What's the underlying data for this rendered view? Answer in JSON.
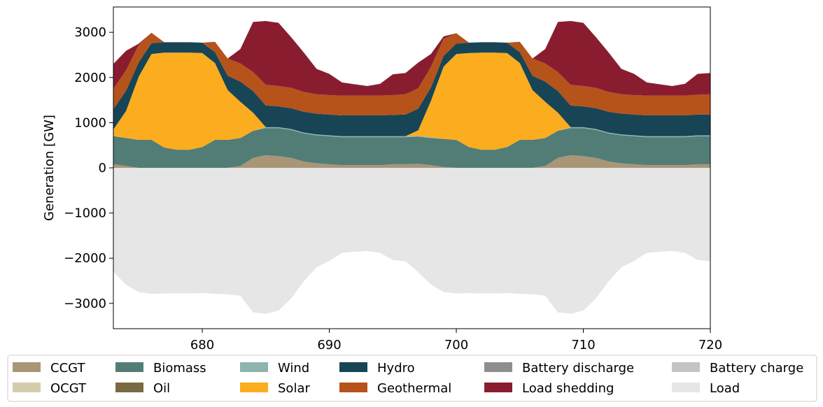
{
  "chart_data": {
    "type": "area",
    "stacked": true,
    "title": "",
    "xlabel": "",
    "ylabel": "Generation [GW]",
    "xlim": [
      673,
      720
    ],
    "ylim": [
      -3560,
      3560
    ],
    "xticks": [
      680,
      690,
      700,
      710,
      720
    ],
    "yticks": [
      -3000,
      -2000,
      -1000,
      0,
      1000,
      2000,
      3000
    ],
    "tick_labels": {
      "x": [
        "680",
        "690",
        "700",
        "710",
        "720"
      ],
      "y": [
        "−3000",
        "−2000",
        "−1000",
        "0",
        "1000",
        "2000",
        "3000"
      ]
    },
    "grid": false,
    "legend_position": "bottom",
    "x": [
      673,
      674,
      675,
      676,
      677,
      678,
      679,
      680,
      681,
      682,
      683,
      684,
      685,
      686,
      687,
      688,
      689,
      690,
      691,
      692,
      693,
      694,
      695,
      696,
      697,
      698,
      699,
      700,
      701,
      702,
      703,
      704,
      705,
      706,
      707,
      708,
      709,
      710,
      711,
      712,
      713,
      714,
      715,
      716,
      717,
      718,
      719,
      720
    ],
    "series": [
      {
        "name": "CCGT",
        "color": "#a89677",
        "values": [
          80,
          40,
          0,
          0,
          0,
          0,
          0,
          0,
          0,
          0,
          40,
          220,
          280,
          260,
          220,
          140,
          100,
          80,
          60,
          60,
          60,
          60,
          80,
          80,
          90,
          60,
          20,
          0,
          0,
          0,
          0,
          0,
          0,
          0,
          40,
          220,
          280,
          260,
          220,
          140,
          100,
          80,
          60,
          60,
          60,
          60,
          80,
          80
        ]
      },
      {
        "name": "OCGT",
        "color": "#d4cdac",
        "values": [
          0,
          0,
          0,
          0,
          0,
          0,
          0,
          0,
          0,
          0,
          0,
          0,
          0,
          0,
          0,
          0,
          0,
          0,
          0,
          0,
          0,
          0,
          0,
          0,
          0,
          0,
          0,
          0,
          0,
          0,
          0,
          0,
          0,
          0,
          0,
          0,
          0,
          0,
          0,
          0,
          0,
          0,
          0,
          0,
          0,
          0,
          0,
          0
        ]
      },
      {
        "name": "Biomass",
        "color": "#527d76",
        "values": [
          620,
          620,
          620,
          620,
          450,
          400,
          400,
          460,
          620,
          620,
          620,
          600,
          600,
          620,
          620,
          620,
          620,
          620,
          620,
          620,
          620,
          620,
          600,
          600,
          600,
          600,
          620,
          620,
          460,
          400,
          400,
          460,
          620,
          620,
          620,
          600,
          600,
          620,
          620,
          620,
          620,
          620,
          620,
          620,
          620,
          620,
          620,
          620
        ]
      },
      {
        "name": "Wind",
        "color": "#8eb4ae",
        "values": [
          0,
          0,
          0,
          0,
          0,
          0,
          0,
          0,
          0,
          0,
          0,
          0,
          20,
          20,
          20,
          20,
          20,
          20,
          20,
          20,
          20,
          20,
          20,
          20,
          20,
          20,
          0,
          0,
          0,
          0,
          0,
          0,
          0,
          0,
          0,
          0,
          20,
          20,
          20,
          20,
          20,
          20,
          20,
          20,
          20,
          20,
          20,
          20
        ]
      },
      {
        "name": "Oil",
        "color": "#7a6a43",
        "values": [
          0,
          0,
          0,
          0,
          0,
          0,
          0,
          0,
          0,
          0,
          0,
          0,
          0,
          0,
          0,
          0,
          0,
          0,
          0,
          0,
          0,
          0,
          0,
          0,
          0,
          0,
          0,
          0,
          0,
          0,
          0,
          0,
          0,
          0,
          0,
          0,
          0,
          0,
          0,
          0,
          0,
          0,
          0,
          0,
          0,
          0,
          0,
          0
        ]
      },
      {
        "name": "Solar",
        "color": "#fbad1f",
        "values": [
          150,
          600,
          1400,
          1900,
          2100,
          2150,
          2150,
          2080,
          1700,
          1100,
          800,
          400,
          0,
          0,
          0,
          0,
          0,
          0,
          0,
          0,
          0,
          0,
          0,
          0,
          120,
          800,
          1600,
          1900,
          2080,
          2150,
          2150,
          2080,
          1700,
          1100,
          800,
          400,
          0,
          0,
          0,
          0,
          0,
          0,
          0,
          0,
          0,
          0,
          0,
          0
        ]
      },
      {
        "name": "Hydro",
        "color": "#184555",
        "values": [
          450,
          450,
          320,
          240,
          230,
          230,
          230,
          230,
          240,
          320,
          450,
          480,
          480,
          460,
          460,
          460,
          460,
          460,
          460,
          460,
          460,
          460,
          470,
          480,
          480,
          300,
          240,
          230,
          230,
          230,
          230,
          230,
          240,
          320,
          450,
          480,
          480,
          460,
          460,
          460,
          460,
          460,
          460,
          460,
          460,
          460,
          460,
          460
        ]
      },
      {
        "name": "Geothermal",
        "color": "#b5531b",
        "values": [
          450,
          450,
          380,
          230,
          0,
          0,
          0,
          0,
          230,
          380,
          400,
          420,
          460,
          450,
          450,
          440,
          430,
          430,
          440,
          440,
          440,
          440,
          440,
          450,
          450,
          450,
          380,
          230,
          0,
          0,
          0,
          0,
          230,
          380,
          400,
          420,
          460,
          450,
          450,
          440,
          430,
          430,
          440,
          440,
          440,
          440,
          440,
          450
        ]
      },
      {
        "name": "Battery discharge",
        "color": "#8e8e8e",
        "values": [
          0,
          0,
          0,
          0,
          0,
          0,
          0,
          0,
          0,
          0,
          0,
          0,
          0,
          0,
          0,
          0,
          0,
          0,
          0,
          0,
          0,
          0,
          0,
          0,
          0,
          0,
          0,
          0,
          0,
          0,
          0,
          0,
          0,
          0,
          0,
          0,
          0,
          0,
          0,
          0,
          0,
          0,
          0,
          0,
          0,
          0,
          0,
          0
        ]
      },
      {
        "name": "Load shedding",
        "color": "#891d2f",
        "values": [
          550,
          430,
          30,
          0,
          0,
          0,
          0,
          0,
          0,
          0,
          320,
          1110,
          1410,
          1400,
          1120,
          870,
          560,
          470,
          290,
          250,
          210,
          260,
          460,
          470,
          570,
          290,
          50,
          0,
          0,
          0,
          0,
          0,
          0,
          0,
          320,
          1110,
          1410,
          1400,
          1120,
          870,
          560,
          470,
          290,
          250,
          210,
          260,
          460,
          470
        ]
      },
      {
        "name": "Battery charge",
        "color": "#c4c4c4",
        "values": [
          0,
          0,
          0,
          0,
          0,
          0,
          0,
          0,
          0,
          0,
          0,
          0,
          0,
          0,
          0,
          0,
          0,
          0,
          0,
          0,
          0,
          0,
          0,
          0,
          0,
          0,
          0,
          0,
          0,
          0,
          0,
          0,
          0,
          0,
          0,
          0,
          0,
          0,
          0,
          0,
          0,
          0,
          0,
          0,
          0,
          0,
          0,
          0
        ]
      },
      {
        "name": "Load",
        "color": "#e6e6e6",
        "values": [
          -2300,
          -2590,
          -2750,
          -2790,
          -2780,
          -2780,
          -2780,
          -2770,
          -2790,
          -2800,
          -2830,
          -3200,
          -3230,
          -3160,
          -2890,
          -2510,
          -2200,
          -2060,
          -1880,
          -1860,
          -1840,
          -1880,
          -2040,
          -2070,
          -2310,
          -2580,
          -2750,
          -2780,
          -2770,
          -2780,
          -2780,
          -2770,
          -2790,
          -2800,
          -2830,
          -3200,
          -3230,
          -3160,
          -2890,
          -2510,
          -2200,
          -2060,
          -1880,
          -1860,
          -1840,
          -1880,
          -2040,
          -2070
        ]
      }
    ],
    "stack_order_positive": [
      "CCGT",
      "OCGT",
      "Biomass",
      "Wind",
      "Oil",
      "Solar",
      "Hydro",
      "Geothermal",
      "Battery discharge",
      "Load shedding"
    ],
    "stack_order_negative": [
      "Battery charge",
      "Load"
    ],
    "legend": [
      [
        "CCGT",
        "OCGT"
      ],
      [
        "Biomass",
        "Oil"
      ],
      [
        "Wind",
        "Solar"
      ],
      [
        "Hydro",
        "Geothermal"
      ],
      [
        "Battery discharge",
        "Load shedding"
      ],
      [
        "Battery charge",
        "Load"
      ]
    ]
  }
}
